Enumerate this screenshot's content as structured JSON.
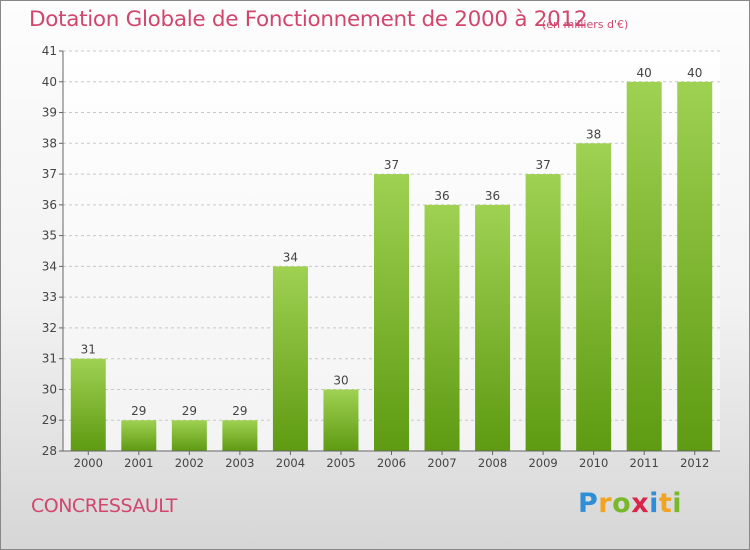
{
  "title": "Dotation Globale de Fonctionnement de 2000 à 2012",
  "unit": "(en milliers d'€)",
  "commune": "CONCRESSAULT",
  "logo": {
    "letters": [
      "P",
      "r",
      "o",
      "x",
      "i",
      "t",
      "i"
    ],
    "colors": [
      "#2f8fd6",
      "#f0a422",
      "#78b82a",
      "#d8264a",
      "#2f8fd6",
      "#f0a422",
      "#78b82a"
    ]
  },
  "colors": {
    "bar_top": "#9fd152",
    "bar_bottom": "#5e9a12",
    "text_accent": "#d1466d",
    "grid": "#c8c8c8"
  },
  "chart_data": {
    "type": "bar",
    "categories": [
      "2000",
      "2001",
      "2002",
      "2003",
      "2004",
      "2005",
      "2006",
      "2007",
      "2008",
      "2009",
      "2010",
      "2011",
      "2012"
    ],
    "values": [
      31,
      29,
      29,
      29,
      34,
      30,
      37,
      36,
      36,
      37,
      38,
      40,
      40
    ],
    "value_labels": [
      "31",
      "29",
      "29",
      "29",
      "34",
      "30",
      "37",
      "36",
      "36",
      "37",
      "38",
      "40",
      "40"
    ],
    "ylim": [
      28,
      41
    ],
    "yticks": [
      "28",
      "29",
      "30",
      "31",
      "32",
      "33",
      "34",
      "35",
      "36",
      "37",
      "38",
      "39",
      "40",
      "41"
    ],
    "grid": true,
    "legend": "none"
  }
}
